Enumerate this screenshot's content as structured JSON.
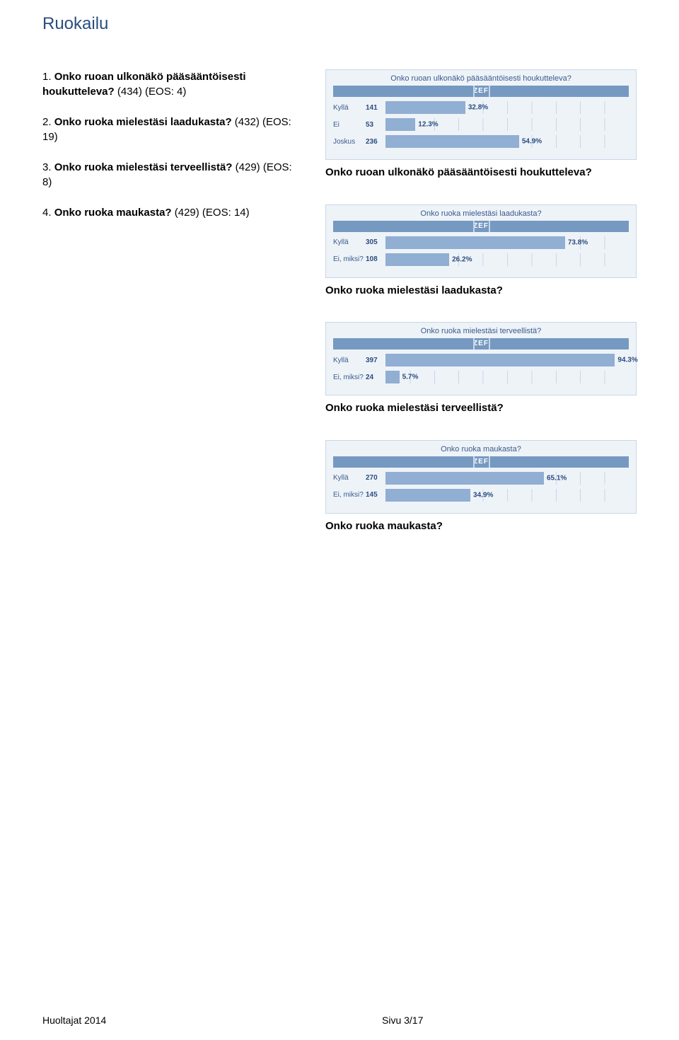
{
  "page_title": "Ruokailu",
  "questions": [
    {
      "prefix": "1. ",
      "bold": "Onko ruoan ulkonäkö pääsääntöisesti houkutteleva?",
      "suffix": " (434) (EOS: 4)"
    },
    {
      "prefix": "2. ",
      "bold": "Onko ruoka mielestäsi laadukasta?",
      "suffix": " (432) (EOS: 19)"
    },
    {
      "prefix": "3. ",
      "bold": "Onko ruoka mielestäsi terveellistä?",
      "suffix": " (429) (EOS: 8)"
    },
    {
      "prefix": "4. ",
      "bold": "Onko ruoka maukasta?",
      "suffix": " (429) (EOS: 14)"
    }
  ],
  "charts": [
    {
      "title": "Onko ruoan ulkonäkö pääsääntöisesti houkutteleva?",
      "caption": "Onko ruoan ulkonäkö pääsääntöisesti houkutteleva?",
      "zef": "ZEF",
      "bar_color": "#91aed3",
      "track_bg": "#eef3f8",
      "grid_color": "#c8d6e8",
      "text_color": "#2a4d80",
      "rows": [
        {
          "label": "Kyllä",
          "count": "141",
          "pct": 32.8,
          "pct_label": "32.8%"
        },
        {
          "label": "Ei",
          "count": "53",
          "pct": 12.3,
          "pct_label": "12.3%"
        },
        {
          "label": "Joskus",
          "count": "236",
          "pct": 54.9,
          "pct_label": "54.9%"
        }
      ]
    },
    {
      "title": "Onko ruoka mielestäsi laadukasta?",
      "caption": "Onko ruoka mielestäsi laadukasta?",
      "zef": "ZEF",
      "bar_color": "#91aed3",
      "track_bg": "#eef3f8",
      "grid_color": "#c8d6e8",
      "text_color": "#2a4d80",
      "rows": [
        {
          "label": "Kyllä",
          "count": "305",
          "pct": 73.8,
          "pct_label": "73.8%"
        },
        {
          "label": "Ei, miksi?",
          "count": "108",
          "pct": 26.2,
          "pct_label": "26.2%"
        }
      ]
    },
    {
      "title": "Onko ruoka mielestäsi terveellistä?",
      "caption": "Onko ruoka mielestäsi terveellistä?",
      "zef": "ZEF",
      "bar_color": "#91aed3",
      "track_bg": "#eef3f8",
      "grid_color": "#c8d6e8",
      "text_color": "#2a4d80",
      "rows": [
        {
          "label": "Kyllä",
          "count": "397",
          "pct": 94.3,
          "pct_label": "94.3%"
        },
        {
          "label": "Ei, miksi?",
          "count": "24",
          "pct": 5.7,
          "pct_label": "5.7%"
        }
      ]
    },
    {
      "title": "Onko ruoka maukasta?",
      "caption": "Onko ruoka maukasta?",
      "zef": "ZEF",
      "bar_color": "#91aed3",
      "track_bg": "#eef3f8",
      "grid_color": "#c8d6e8",
      "text_color": "#2a4d80",
      "rows": [
        {
          "label": "Kyllä",
          "count": "270",
          "pct": 65.1,
          "pct_label": "65.1%"
        },
        {
          "label": "Ei, miksi?",
          "count": "145",
          "pct": 34.9,
          "pct_label": "34.9%"
        }
      ]
    }
  ],
  "footer": {
    "left": "Huoltajat 2014",
    "right": "Sivu 3/17"
  }
}
